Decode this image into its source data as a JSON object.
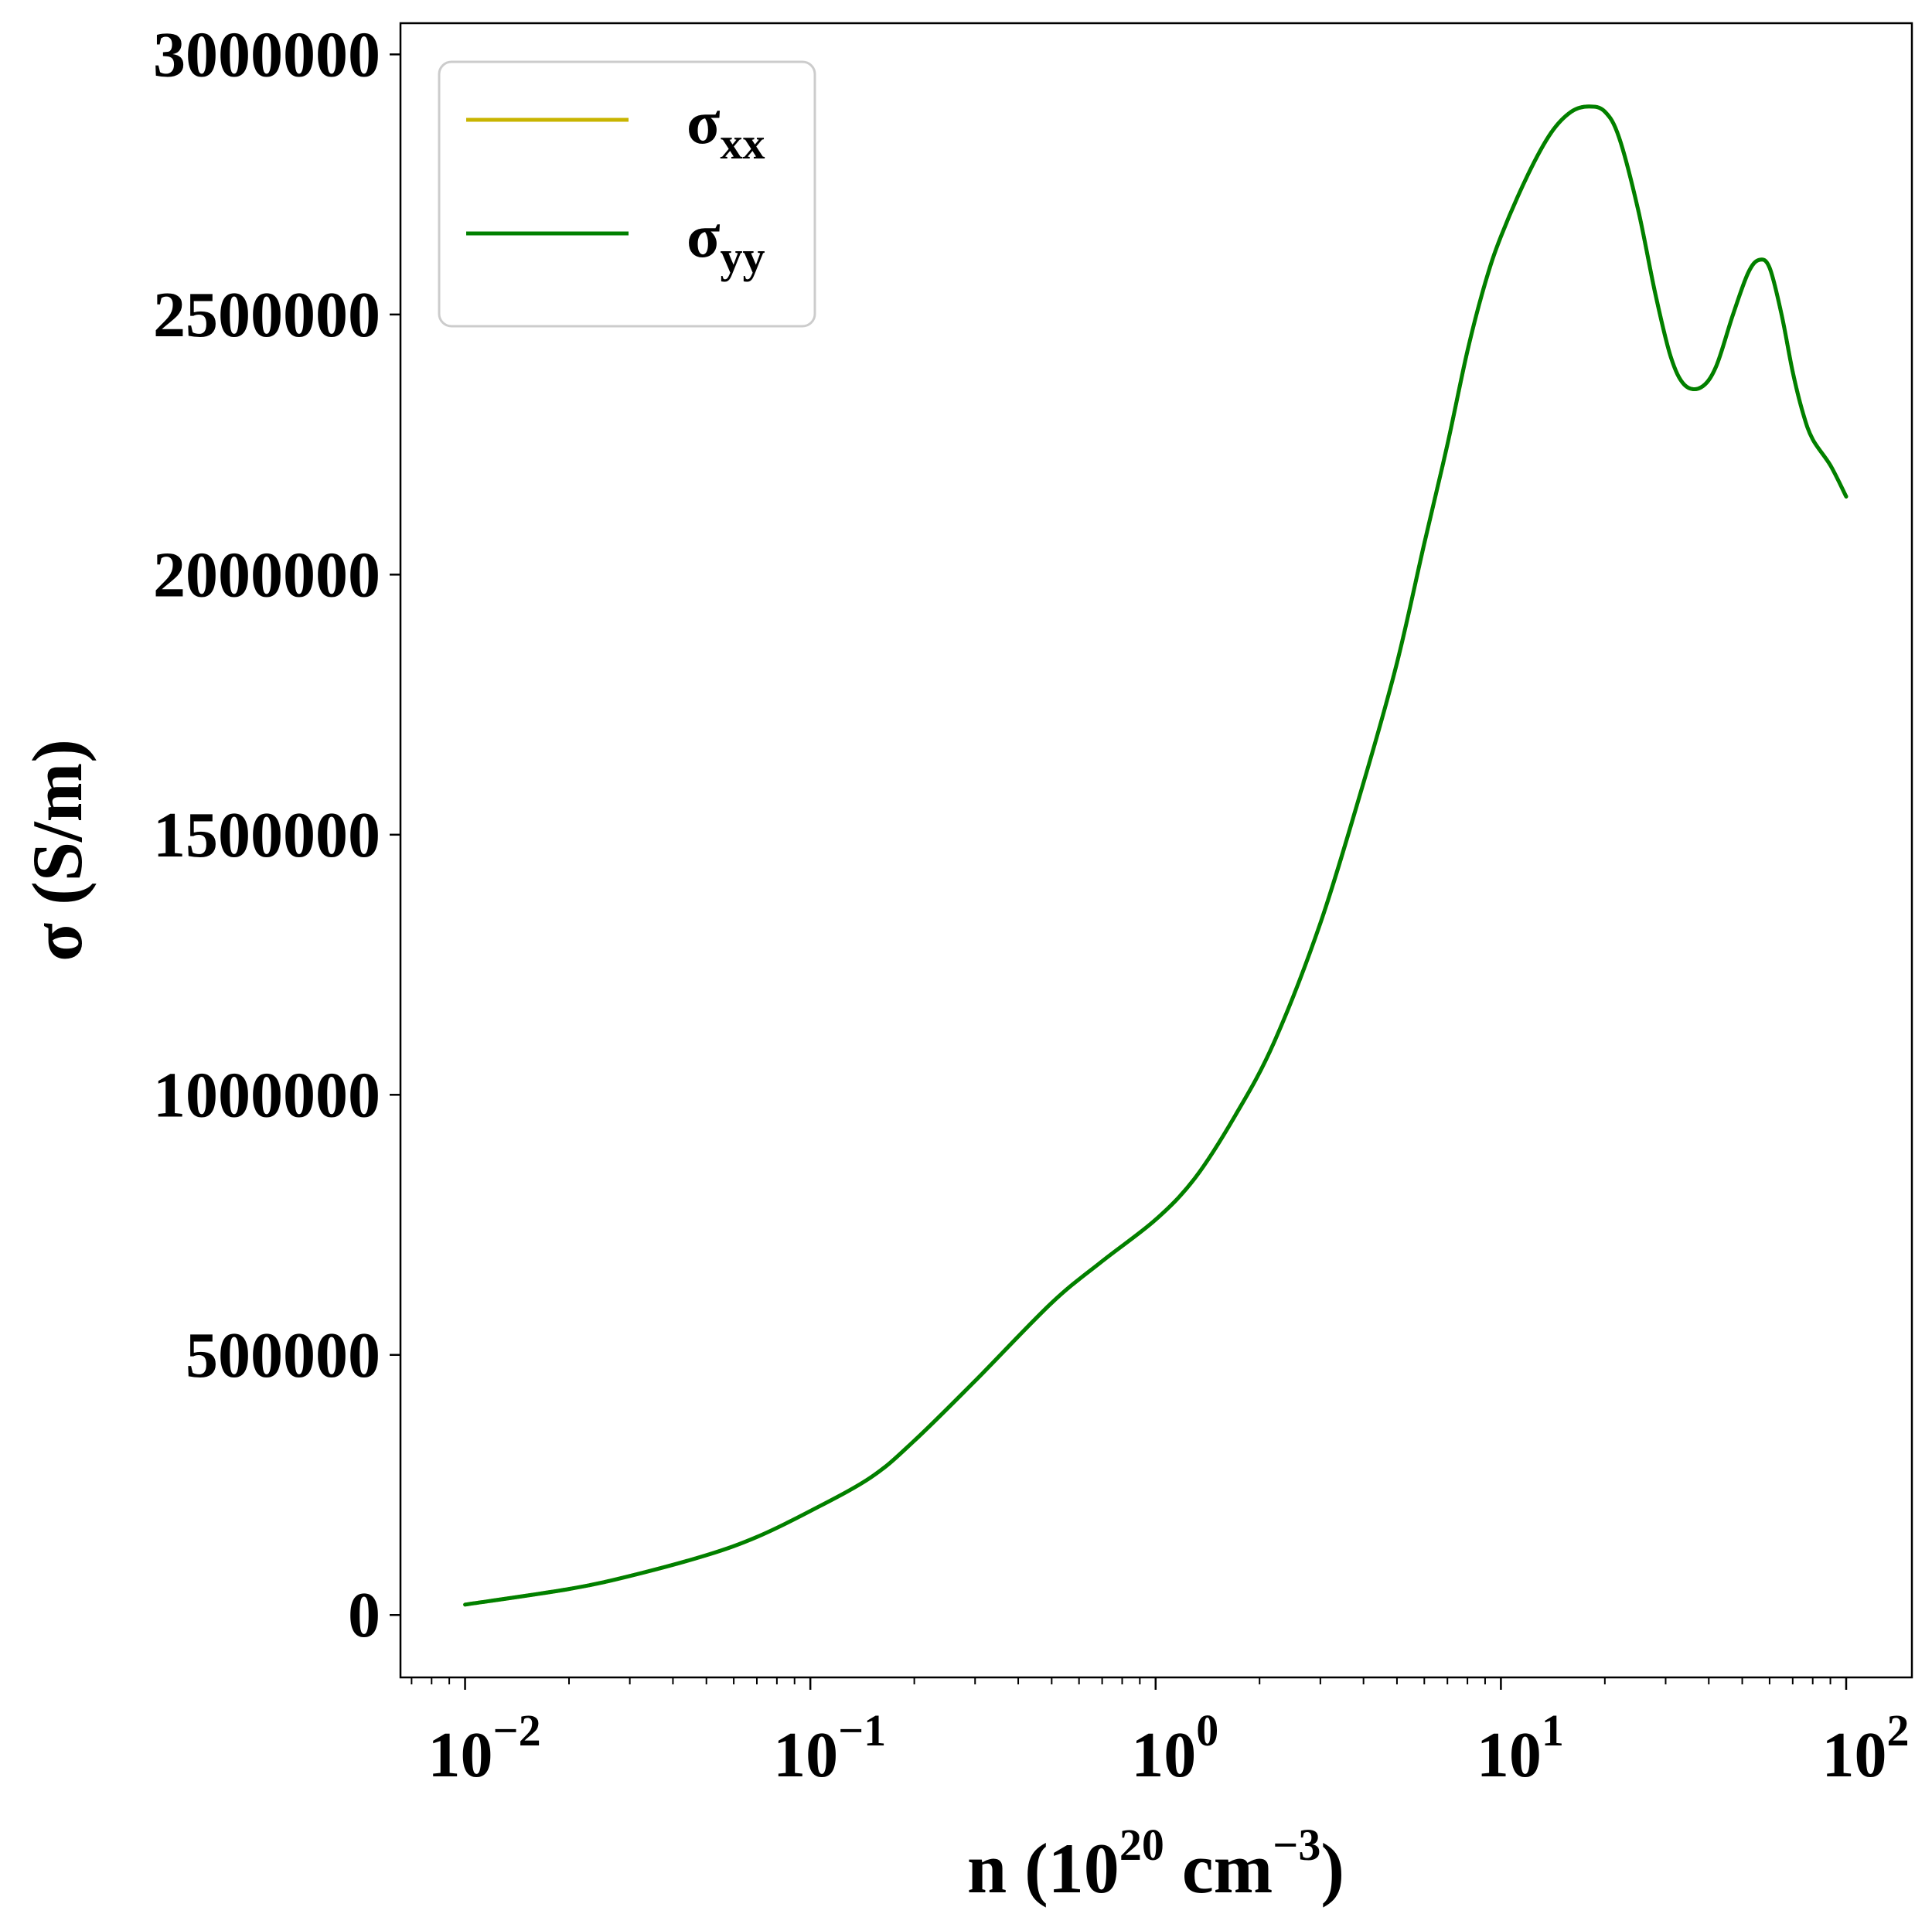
{
  "chart_data": {
    "type": "line",
    "xscale": "log",
    "xlim": [
      0.0065,
      155
    ],
    "ylim": [
      -120000,
      3060000
    ],
    "xlabel": {
      "base": "n (10",
      "exp1": "20",
      "mid": " cm",
      "exp2": "−3",
      "end": ")"
    },
    "ylabel": "σ (S/m)",
    "legend_position": "upper left",
    "grid": false,
    "yticks": [
      {
        "value": 0,
        "label": "0"
      },
      {
        "value": 500000,
        "label": "500000"
      },
      {
        "value": 1000000,
        "label": "1000000"
      },
      {
        "value": 1500000,
        "label": "1500000"
      },
      {
        "value": 2000000,
        "label": "2000000"
      },
      {
        "value": 2500000,
        "label": "2500000"
      },
      {
        "value": 3000000,
        "label": "3000000"
      }
    ],
    "xticks": [
      {
        "value": 0.01,
        "base": "10",
        "exp": "−2"
      },
      {
        "value": 0.1,
        "base": "10",
        "exp": "−1"
      },
      {
        "value": 1,
        "base": "10",
        "exp": "0"
      },
      {
        "value": 10,
        "base": "10",
        "exp": "1"
      },
      {
        "value": 100,
        "base": "10",
        "exp": "2"
      }
    ],
    "series": [
      {
        "name_main": "σ",
        "name_sub": "xx",
        "color": "#c8b400",
        "x": [
          0.01,
          0.02,
          0.03,
          0.05,
          0.07,
          0.1,
          0.15,
          0.2,
          0.3,
          0.5,
          0.7,
          1.0,
          1.3,
          1.7,
          2.2,
          3.0,
          4.0,
          5.0,
          6.0,
          7.0,
          8.0,
          9.0,
          10.0,
          12.0,
          14.0,
          16.0,
          18.0,
          20.0,
          22.0,
          25.0,
          28.0,
          31.0,
          34.0,
          38.0,
          42.0,
          47.0,
          52.0,
          56.0,
          60.0,
          65.0,
          70.0,
          75.0,
          80.0,
          90.0,
          100.0
        ],
        "values": [
          20000,
          50000,
          75000,
          115000,
          150000,
          200000,
          265000,
          335000,
          450000,
          600000,
          680000,
          760000,
          840000,
          960000,
          1100000,
          1330000,
          1600000,
          1830000,
          2060000,
          2250000,
          2430000,
          2560000,
          2650000,
          2770000,
          2850000,
          2890000,
          2900000,
          2890000,
          2840000,
          2700000,
          2540000,
          2420000,
          2365000,
          2360000,
          2400000,
          2500000,
          2580000,
          2605000,
          2590000,
          2500000,
          2390000,
          2310000,
          2260000,
          2210000,
          2150000
        ]
      },
      {
        "name_main": "σ",
        "name_sub": "yy",
        "color": "#008000",
        "x": [
          0.01,
          0.02,
          0.03,
          0.05,
          0.07,
          0.1,
          0.15,
          0.2,
          0.3,
          0.5,
          0.7,
          1.0,
          1.3,
          1.7,
          2.2,
          3.0,
          4.0,
          5.0,
          6.0,
          7.0,
          8.0,
          9.0,
          10.0,
          12.0,
          14.0,
          16.0,
          18.0,
          20.0,
          22.0,
          25.0,
          28.0,
          31.0,
          34.0,
          38.0,
          42.0,
          47.0,
          52.0,
          56.0,
          60.0,
          65.0,
          70.0,
          75.0,
          80.0,
          90.0,
          100.0
        ],
        "values": [
          20000,
          50000,
          75000,
          115000,
          150000,
          200000,
          265000,
          335000,
          450000,
          600000,
          680000,
          760000,
          840000,
          960000,
          1100000,
          1330000,
          1600000,
          1830000,
          2060000,
          2250000,
          2430000,
          2560000,
          2650000,
          2770000,
          2850000,
          2890000,
          2900000,
          2890000,
          2840000,
          2700000,
          2540000,
          2420000,
          2365000,
          2360000,
          2400000,
          2500000,
          2580000,
          2605000,
          2590000,
          2500000,
          2390000,
          2310000,
          2260000,
          2210000,
          2150000
        ]
      }
    ]
  }
}
